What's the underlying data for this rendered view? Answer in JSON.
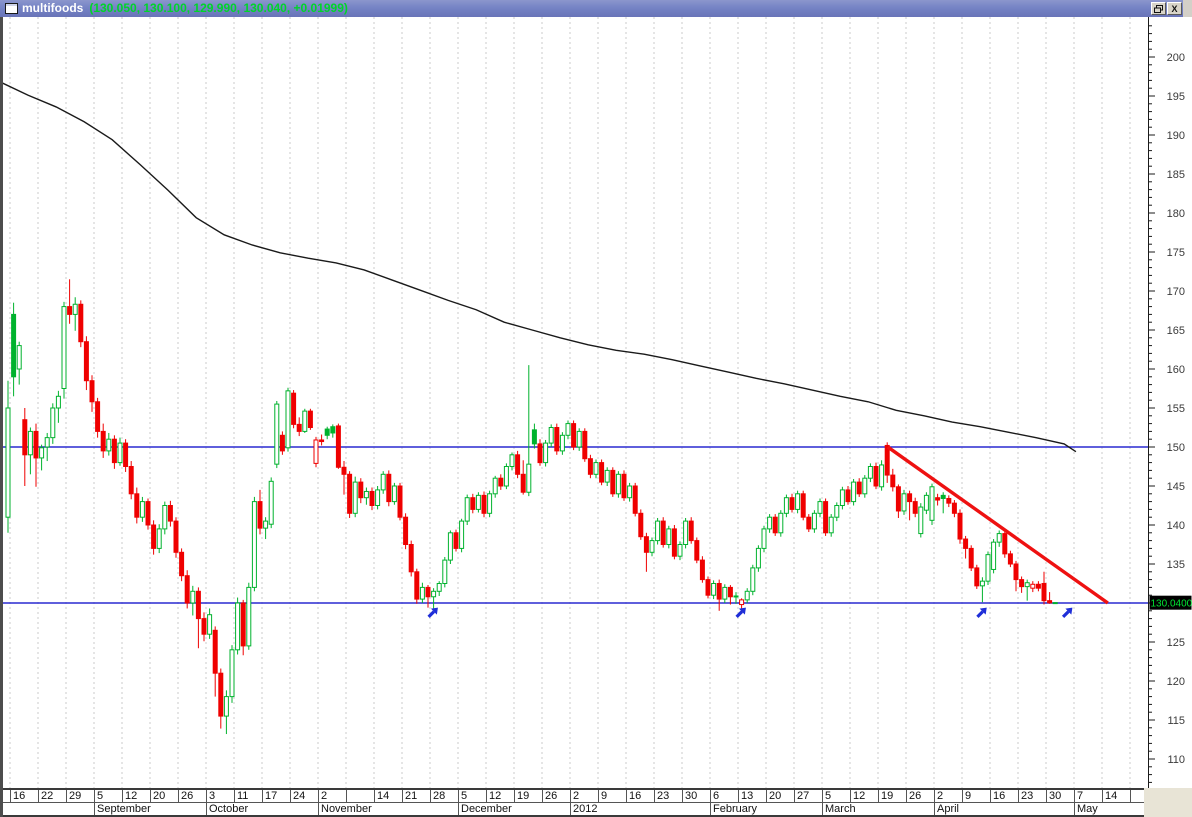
{
  "window": {
    "title": "multifoods",
    "quote": "(130.050, 130.100, 129.990, 130.040, +0.01999)",
    "close_glyph": "X"
  },
  "colors": {
    "titlebar": "#7583c5",
    "quote_text": "#00d42a",
    "candle_up": "#00b22d",
    "candle_down": "#ef0000",
    "hline_blue": "#2a2ad0",
    "trendline_red": "#ee1111",
    "ma_black": "#1a1a1a",
    "arrow_blue": "#1e2ed8",
    "price_tag_bg": "#000000",
    "price_tag_text": "#00e432",
    "grid": "#cbcbcb"
  },
  "chart_data": {
    "type": "candlestick",
    "title": "multifoods",
    "last_quote": {
      "open": 130.05,
      "high": 130.1,
      "low": 129.99,
      "close": 130.04,
      "change": "+0.01999"
    },
    "y_axis": {
      "min": 106,
      "max": 204,
      "major_tick": 5,
      "minor_tick": 1,
      "labels": [
        200,
        195,
        190,
        185,
        180,
        175,
        170,
        165,
        160,
        155,
        150,
        145,
        140,
        135,
        130,
        125,
        120,
        115,
        110
      ]
    },
    "x_axis": {
      "weeks": [
        "16",
        "22",
        "29",
        "5",
        "12",
        "20",
        "26",
        "3",
        "11",
        "17",
        "24",
        "2",
        "",
        "14",
        "21",
        "28",
        "5",
        "12",
        "19",
        "26",
        "2",
        "9",
        "16",
        "23",
        "30",
        "6",
        "13",
        "20",
        "27",
        "5",
        "12",
        "19",
        "26",
        "2",
        "9",
        "16",
        "23",
        "30",
        "7",
        "14"
      ],
      "months": [
        {
          "label": "September",
          "week": 3
        },
        {
          "label": "October",
          "week": 7
        },
        {
          "label": "November",
          "week": 11
        },
        {
          "label": "December",
          "week": 16
        },
        {
          "label": "2012",
          "week": 20
        },
        {
          "label": "February",
          "week": 25
        },
        {
          "label": "March",
          "week": 29
        },
        {
          "label": "April",
          "week": 33
        },
        {
          "label": "May",
          "week": 38
        }
      ]
    },
    "h_lines": [
      150,
      130
    ],
    "trendline": {
      "from": [
        157.1,
        150.0
      ],
      "to": [
        196.4,
        130.0
      ]
    },
    "arrows": [
      {
        "day": 76,
        "price": 128.6
      },
      {
        "day": 131,
        "price": 128.6
      },
      {
        "day": 174,
        "price": 128.6
      },
      {
        "day": 189.3,
        "price": 128.6
      }
    ],
    "price_tag": {
      "value": 130.04,
      "text": "130.0400"
    },
    "ma_line": {
      "name": "moving-average",
      "points": [
        [
          -1.4,
          196.8
        ],
        [
          3.6,
          195.1
        ],
        [
          8.6,
          193.6
        ],
        [
          13.6,
          191.7
        ],
        [
          18.6,
          189.4
        ],
        [
          23.6,
          186.2
        ],
        [
          28.6,
          182.9
        ],
        [
          33.6,
          179.4
        ],
        [
          38.6,
          177.2
        ],
        [
          43.6,
          175.9
        ],
        [
          48.6,
          174.9
        ],
        [
          53.6,
          174.2
        ],
        [
          58.6,
          173.6
        ],
        [
          63.6,
          172.7
        ],
        [
          68.6,
          171.4
        ],
        [
          73.6,
          170.1
        ],
        [
          78.6,
          168.8
        ],
        [
          83.6,
          167.6
        ],
        [
          88.6,
          166.0
        ],
        [
          93.6,
          165.0
        ],
        [
          98.6,
          164.0
        ],
        [
          103.6,
          163.1
        ],
        [
          108.6,
          162.4
        ],
        [
          113.6,
          161.9
        ],
        [
          118.6,
          161.2
        ],
        [
          123.6,
          160.4
        ],
        [
          128.6,
          159.6
        ],
        [
          133.6,
          158.8
        ],
        [
          138.6,
          158.1
        ],
        [
          143.6,
          157.3
        ],
        [
          148.6,
          156.5
        ],
        [
          153.6,
          155.8
        ],
        [
          158.6,
          154.7
        ],
        [
          163.6,
          154.0
        ],
        [
          168.6,
          153.2
        ],
        [
          173.6,
          152.6
        ],
        [
          178.6,
          151.9
        ],
        [
          183.6,
          151.2
        ],
        [
          188.6,
          150.4
        ],
        [
          190.7,
          149.4
        ]
      ]
    },
    "candles": [
      [
        141,
        158.5,
        139,
        155
      ],
      [
        167,
        168.5,
        156.5,
        159
      ],
      [
        160,
        163.5,
        158,
        163
      ],
      [
        153.5,
        155,
        145,
        149
      ],
      [
        149,
        152.5,
        146.5,
        152
      ],
      [
        152,
        153,
        144.9,
        148.6
      ],
      [
        148.6,
        150.3,
        147,
        149.9
      ],
      [
        150,
        151.8,
        148.2,
        151.2
      ],
      [
        151.2,
        155.6,
        150.4,
        155
      ],
      [
        155,
        157.2,
        153.1,
        156.5
      ],
      [
        157.5,
        168.6,
        156.2,
        168
      ],
      [
        168,
        171.5,
        165.8,
        167
      ],
      [
        167,
        169.2,
        164.9,
        168.3
      ],
      [
        168.3,
        168.8,
        162.8,
        163.5
      ],
      [
        163.5,
        164.2,
        157.3,
        158.5
      ],
      [
        158.5,
        159.2,
        154.5,
        155.8
      ],
      [
        155.8,
        156.3,
        151.2,
        152
      ],
      [
        152,
        153,
        148.6,
        149.5
      ],
      [
        149.5,
        151.8,
        148.9,
        151
      ],
      [
        151,
        151.5,
        147.2,
        148
      ],
      [
        148,
        151.2,
        147.6,
        150.5
      ],
      [
        150.5,
        151,
        146.8,
        147.5
      ],
      [
        147.5,
        148.2,
        143.3,
        144
      ],
      [
        144,
        144.8,
        140.2,
        141
      ],
      [
        141,
        143.6,
        140.4,
        143
      ],
      [
        143,
        143.4,
        139.4,
        140
      ],
      [
        140,
        140.6,
        136.2,
        137
      ],
      [
        137,
        140.1,
        136.4,
        139.5
      ],
      [
        139.5,
        143,
        138.8,
        142.5
      ],
      [
        142.5,
        143.1,
        139.8,
        140.5
      ],
      [
        140.5,
        141,
        135.8,
        136.5
      ],
      [
        136.5,
        137,
        132.8,
        133.5
      ],
      [
        133.5,
        134.2,
        129.3,
        130
      ],
      [
        130,
        132.2,
        128.4,
        131.5
      ],
      [
        131.5,
        132,
        124.2,
        128
      ],
      [
        128,
        128.8,
        125.1,
        126
      ],
      [
        126,
        129.3,
        125.4,
        128.5
      ],
      [
        126.5,
        127,
        118,
        121
      ],
      [
        121,
        121.6,
        113.9,
        115.5
      ],
      [
        115.5,
        118.8,
        113.2,
        118
      ],
      [
        118,
        124.6,
        117.2,
        124
      ],
      [
        124,
        130.7,
        123.4,
        130
      ],
      [
        130,
        130.4,
        123.3,
        124.5
      ],
      [
        124.5,
        132.6,
        124,
        132
      ],
      [
        132,
        143.6,
        131.5,
        143
      ],
      [
        143,
        144.5,
        138.8,
        139.6
      ],
      [
        139.6,
        141,
        138.2,
        140.5
      ],
      [
        140.1,
        146.1,
        139.6,
        145.6
      ],
      [
        147.8,
        155.9,
        147.3,
        155.5
      ],
      [
        151.5,
        152,
        149,
        149.5
      ],
      [
        149.9,
        157.6,
        149.4,
        157.2
      ],
      [
        156.9,
        157.3,
        152.4,
        152.9
      ],
      [
        152.9,
        153.8,
        151.4,
        152
      ],
      [
        152,
        154.9,
        151.8,
        154.6
      ],
      [
        154.6,
        154.9,
        152.2,
        152.5
      ],
      [
        147.9,
        151.3,
        147.4,
        150.9
      ],
      [
        150.9,
        151.6,
        150.2,
        150.7
      ],
      [
        152.3,
        152.6,
        151,
        151.5
      ],
      [
        152.6,
        152.9,
        151.2,
        151.8
      ],
      [
        152.7,
        153,
        147.2,
        147.4
      ],
      [
        147.4,
        148.2,
        143.9,
        146.5
      ],
      [
        146.5,
        146.9,
        140.9,
        141.5
      ],
      [
        141.5,
        146.2,
        141,
        145.5
      ],
      [
        145.5,
        146,
        142.8,
        143.5
      ],
      [
        143.5,
        144.8,
        142.6,
        144.3
      ],
      [
        144.3,
        144.8,
        141.9,
        142.5
      ],
      [
        142.5,
        145,
        142,
        144.5
      ],
      [
        144.5,
        146.9,
        144,
        146.5
      ],
      [
        146.5,
        147,
        142.4,
        143
      ],
      [
        143,
        145.4,
        142.6,
        145
      ],
      [
        145,
        145.4,
        140.6,
        141
      ],
      [
        141,
        141.5,
        136.9,
        137.5
      ],
      [
        137.5,
        138,
        133.4,
        134
      ],
      [
        134,
        134.4,
        129.9,
        130.5
      ],
      [
        130.5,
        132.6,
        130,
        132
      ],
      [
        132,
        132.3,
        129.4,
        130.8
      ],
      [
        130.8,
        131.9,
        129.3,
        131.5
      ],
      [
        131.5,
        132.8,
        130.9,
        132.5
      ],
      [
        132.5,
        135.9,
        132,
        135.5
      ],
      [
        135.5,
        139.3,
        135,
        139
      ],
      [
        139,
        139.4,
        136.6,
        137
      ],
      [
        137,
        140.8,
        136.5,
        140.5
      ],
      [
        140.5,
        143.9,
        140,
        143.5
      ],
      [
        143.5,
        144,
        141.5,
        142
      ],
      [
        142,
        144.2,
        141.6,
        143.8
      ],
      [
        143.8,
        144.3,
        141,
        141.5
      ],
      [
        141.5,
        144.4,
        141,
        144
      ],
      [
        144,
        146.3,
        143.5,
        146
      ],
      [
        146,
        146.5,
        144.5,
        145
      ],
      [
        145,
        147.9,
        144.6,
        147.5
      ],
      [
        147.5,
        149.3,
        147,
        149
      ],
      [
        149,
        149.5,
        146,
        146.5
      ],
      [
        146.5,
        148.3,
        143.9,
        144.2
      ],
      [
        144.2,
        160.5,
        143.7,
        147.8
      ],
      [
        152.2,
        153,
        149.8,
        150.4
      ],
      [
        150.4,
        151,
        147.6,
        148
      ],
      [
        148,
        150.9,
        147.5,
        150.5
      ],
      [
        150.5,
        152.9,
        150,
        152.5
      ],
      [
        152.5,
        153,
        149,
        149.5
      ],
      [
        149.5,
        151.9,
        149,
        151.5
      ],
      [
        151.5,
        153.4,
        151,
        153
      ],
      [
        153,
        153.4,
        149.6,
        150
      ],
      [
        150,
        152.4,
        149.5,
        152
      ],
      [
        152,
        152.4,
        148.1,
        148.5
      ],
      [
        148.5,
        149,
        146,
        146.5
      ],
      [
        146.5,
        148.4,
        146,
        148
      ],
      [
        148,
        148.4,
        145.1,
        145.5
      ],
      [
        145.5,
        147.4,
        145,
        147
      ],
      [
        147,
        147.4,
        143.6,
        144
      ],
      [
        144,
        146.9,
        143.5,
        146.5
      ],
      [
        146.5,
        147,
        143.1,
        143.5
      ],
      [
        143.5,
        145.4,
        143,
        145
      ],
      [
        145,
        145.4,
        141.1,
        141.5
      ],
      [
        141.5,
        142,
        138.1,
        138.5
      ],
      [
        138.5,
        139,
        134,
        136.5
      ],
      [
        136.5,
        138.4,
        136,
        138
      ],
      [
        138,
        140.9,
        137.5,
        140.5
      ],
      [
        140.5,
        141,
        137.1,
        137.5
      ],
      [
        137.5,
        139.9,
        137,
        139.5
      ],
      [
        139.5,
        140,
        135.6,
        136
      ],
      [
        136,
        137.9,
        135.5,
        137.5
      ],
      [
        137.5,
        140.9,
        137,
        140.5
      ],
      [
        140.5,
        141,
        137.6,
        138
      ],
      [
        138,
        138.4,
        135.1,
        135.5
      ],
      [
        135.5,
        136,
        132.6,
        133
      ],
      [
        133,
        133.4,
        130.6,
        131
      ],
      [
        131,
        132.9,
        130.5,
        132.5
      ],
      [
        132.5,
        133,
        129,
        130.5
      ],
      [
        130.5,
        132.4,
        130,
        132
      ],
      [
        132,
        132.3,
        129.8,
        130.8
      ],
      [
        130.8,
        131.4,
        129.9,
        130.9
      ],
      [
        129.8,
        130.6,
        128.6,
        130.4
      ],
      [
        130.4,
        131.9,
        130,
        131.5
      ],
      [
        131.5,
        134.9,
        131,
        134.5
      ],
      [
        134.5,
        137.4,
        134,
        137
      ],
      [
        137,
        139.9,
        136.5,
        139.5
      ],
      [
        139.5,
        141.4,
        139,
        141
      ],
      [
        141,
        141.4,
        138.6,
        139
      ],
      [
        139,
        141.9,
        138.5,
        141.5
      ],
      [
        141.5,
        143.9,
        141,
        143.5
      ],
      [
        143.5,
        144,
        141.6,
        142
      ],
      [
        142,
        144.4,
        141.5,
        144
      ],
      [
        144,
        144.4,
        140.6,
        141
      ],
      [
        141,
        141.4,
        139.1,
        139.5
      ],
      [
        139.5,
        141.9,
        139,
        141.5
      ],
      [
        141.5,
        143.4,
        141,
        143
      ],
      [
        143,
        143.4,
        138.6,
        139
      ],
      [
        139,
        141.4,
        138.5,
        141
      ],
      [
        141,
        142.9,
        140.5,
        142.5
      ],
      [
        142.5,
        144.9,
        142,
        144.5
      ],
      [
        144.5,
        145,
        142.6,
        143
      ],
      [
        143,
        145.9,
        142.5,
        145.5
      ],
      [
        145.5,
        146,
        143.6,
        144
      ],
      [
        144,
        146.4,
        143.5,
        146
      ],
      [
        146,
        147.9,
        145.5,
        147.5
      ],
      [
        147.5,
        148,
        144.6,
        145
      ],
      [
        144.9,
        148.3,
        144.4,
        147.7
      ],
      [
        150.2,
        150.6,
        145.4,
        146.4
      ],
      [
        146.4,
        147.2,
        144.3,
        144.9
      ],
      [
        144.9,
        145.2,
        140.9,
        141.8
      ],
      [
        141.8,
        144.5,
        141.3,
        144
      ],
      [
        144,
        144.4,
        140.6,
        143
      ],
      [
        143,
        143.5,
        141,
        141.5
      ],
      [
        138.9,
        142.8,
        138.4,
        142.3
      ],
      [
        141.9,
        144.2,
        141.4,
        143.8
      ],
      [
        140.6,
        145.3,
        140,
        144.9
      ],
      [
        143.5,
        144,
        142.5,
        143.2
      ],
      [
        143.8,
        144.2,
        141.5,
        143.4
      ],
      [
        143.4,
        143.8,
        142.3,
        142.8
      ],
      [
        142.8,
        143.2,
        141,
        141.5
      ],
      [
        141.5,
        142,
        137.6,
        138.2
      ],
      [
        138.2,
        138.6,
        135.7,
        137
      ],
      [
        137,
        137.4,
        134.1,
        134.5
      ],
      [
        134.5,
        134.9,
        131.8,
        132.2
      ],
      [
        132.2,
        133.3,
        130.1,
        132.8
      ],
      [
        132.8,
        136.6,
        132.3,
        136.2
      ],
      [
        134.3,
        138.2,
        133.8,
        137.8
      ],
      [
        137.8,
        139.3,
        137.2,
        138.9
      ],
      [
        138.9,
        139.2,
        135.8,
        136.3
      ],
      [
        136.3,
        136.7,
        134.6,
        135
      ],
      [
        135,
        135.4,
        131.5,
        133
      ],
      [
        133,
        133.4,
        131.3,
        132.1
      ],
      [
        132.1,
        133,
        130.3,
        132.6
      ],
      [
        131.9,
        132.8,
        131.4,
        132.4
      ],
      [
        132.4,
        132.8,
        131.5,
        131.9
      ],
      [
        132.5,
        134,
        129.8,
        130.3
      ],
      [
        130.3,
        131.4,
        129.9,
        130.02
      ],
      [
        130.05,
        130.1,
        129.99,
        130.04
      ]
    ]
  }
}
